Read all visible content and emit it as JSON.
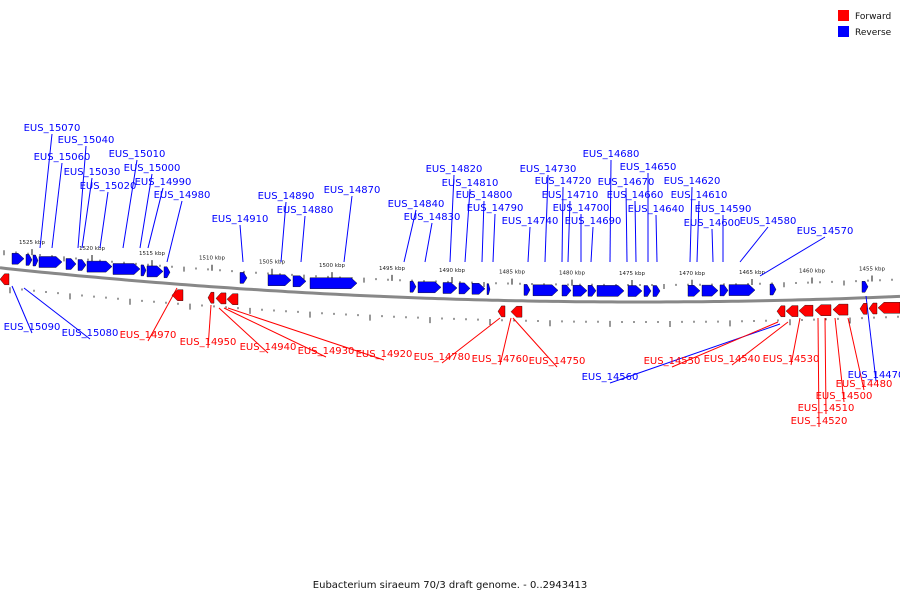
{
  "caption": "Eubacterium siraeum 70/3 draft genome. - 0..2943413",
  "legend": [
    {
      "label": "Forward",
      "color": "#ff0000"
    },
    {
      "label": "Reverse",
      "color": "#0000ff"
    }
  ],
  "colors": {
    "forward": "#ff0000",
    "reverse": "#0000ff",
    "backbone": "#888888"
  },
  "ticks": [
    {
      "label": "1525 kbp"
    },
    {
      "label": "1520 kbp"
    },
    {
      "label": "1515 kbp"
    },
    {
      "label": "1510 kbp"
    },
    {
      "label": "1505 kbp"
    },
    {
      "label": "1500 kbp"
    },
    {
      "label": "1495 kbp"
    },
    {
      "label": "1490 kbp"
    },
    {
      "label": "1485 kbp"
    },
    {
      "label": "1480 kbp"
    },
    {
      "label": "1475 kbp"
    },
    {
      "label": "1470 kbp"
    },
    {
      "label": "1465 kbp"
    },
    {
      "label": "1460 kbp"
    },
    {
      "label": "1455 kbp"
    }
  ],
  "reverse_genes": [
    "EUS_15070",
    "EUS_15040",
    "EUS_15060",
    "EUS_15010",
    "EUS_15030",
    "EUS_15000",
    "EUS_15020",
    "EUS_14990",
    "EUS_14980",
    "EUS_14910",
    "EUS_14890",
    "EUS_14880",
    "EUS_14870",
    "EUS_14840",
    "EUS_14830",
    "EUS_14820",
    "EUS_14810",
    "EUS_14800",
    "EUS_14790",
    "EUS_14740",
    "EUS_14730",
    "EUS_14720",
    "EUS_14710",
    "EUS_14700",
    "EUS_14690",
    "EUS_14680",
    "EUS_14670",
    "EUS_14660",
    "EUS_14650",
    "EUS_14640",
    "EUS_14620",
    "EUS_14610",
    "EUS_14600",
    "EUS_14590",
    "EUS_14580",
    "EUS_14570",
    "EUS_15090",
    "EUS_15080",
    "EUS_14560",
    "EUS_14470"
  ],
  "forward_genes": [
    "EUS_14970",
    "EUS_14950",
    "EUS_14940",
    "EUS_14930",
    "EUS_14920",
    "EUS_14780",
    "EUS_14760",
    "EUS_14750",
    "EUS_14550",
    "EUS_14540",
    "EUS_14530",
    "EUS_14480",
    "EUS_14500",
    "EUS_14510",
    "EUS_14520"
  ]
}
